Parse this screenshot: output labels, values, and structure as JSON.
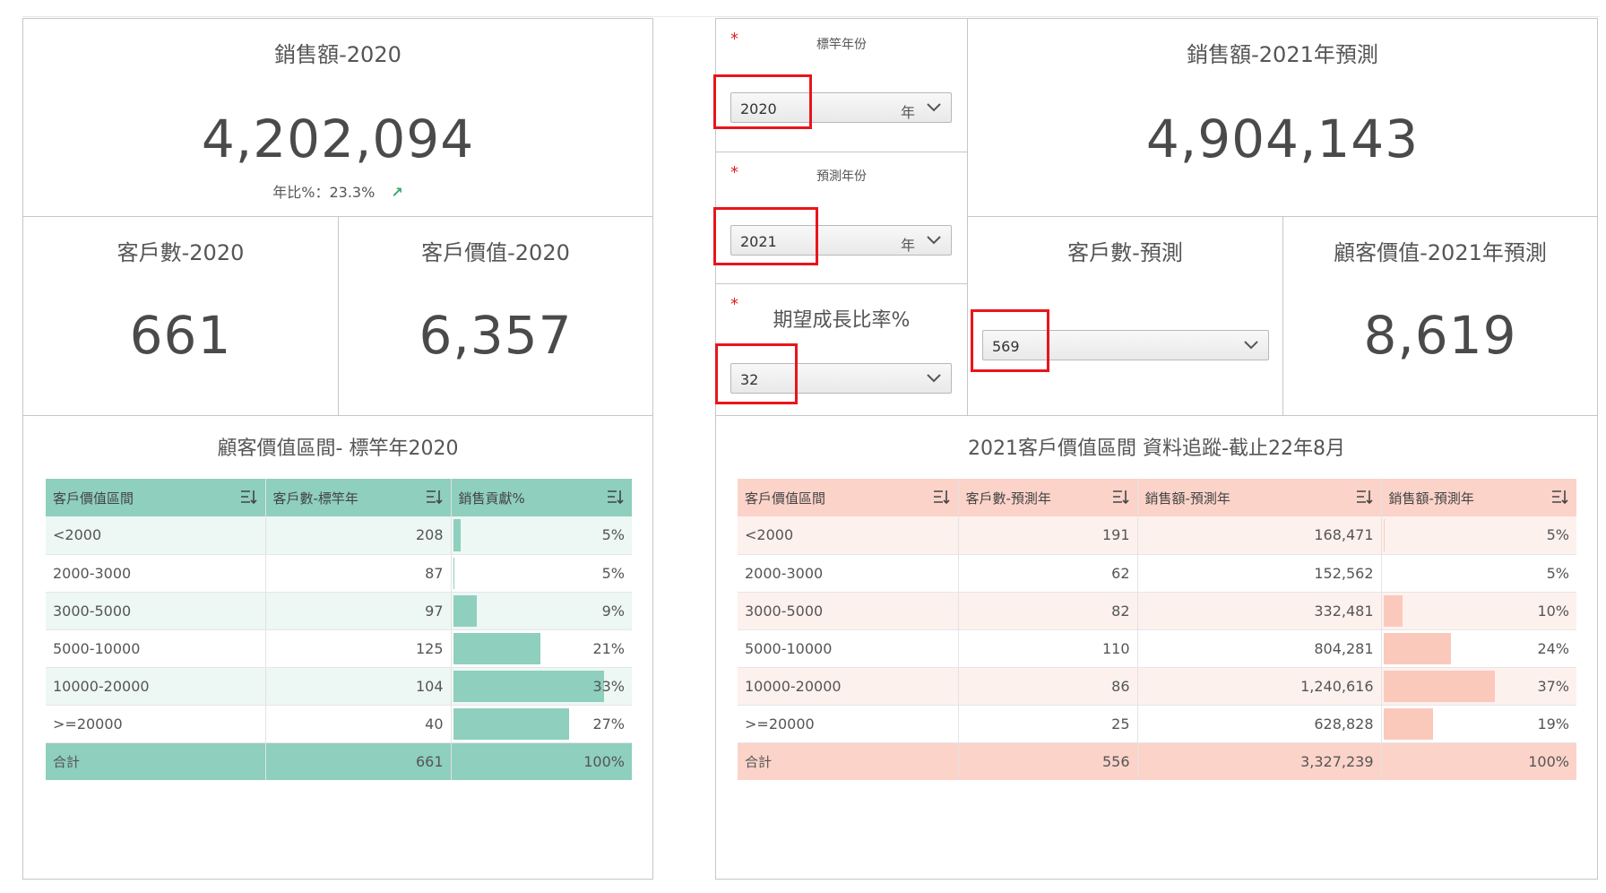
{
  "kpis": {
    "sales_2020": {
      "title": "銷售額-2020",
      "value": "4,202,094",
      "yoy": "年比%：23.3%"
    },
    "customers_2020": {
      "title": "客戶數-2020",
      "value": "661"
    },
    "value_2020": {
      "title": "客戶價值-2020",
      "value": "6,357"
    },
    "sales_2021": {
      "title": "銷售額-2021年預測",
      "value": "4,904,143"
    },
    "customers_forecast": {
      "title": "客戶數-預測"
    },
    "value_2021": {
      "title": "顧客價值-2021年預測",
      "value": "8,619"
    }
  },
  "params": {
    "required_mark": "*",
    "base_year": {
      "label": "標竿年份",
      "value": "2020",
      "unit": "年"
    },
    "forecast_year": {
      "label": "預測年份",
      "value": "2021",
      "unit": "年"
    },
    "growth_rate": {
      "label": "期望成長比率%",
      "value": "32"
    },
    "customer_count": {
      "value": "569"
    }
  },
  "table_green": {
    "title": "顧客價值區間- 標竿年2020",
    "headers": [
      "客戶價值區間",
      "客戶數-標竿年",
      "銷售貢獻%"
    ],
    "rows": [
      {
        "range": "<2000",
        "count": "208",
        "pct": "5%",
        "pct_value": 5
      },
      {
        "range": "2000-3000",
        "count": "87",
        "pct": "5%",
        "pct_value": 1
      },
      {
        "range": "3000-5000",
        "count": "97",
        "pct": "9%",
        "pct_value": 16
      },
      {
        "range": "5000-10000",
        "count": "125",
        "pct": "21%",
        "pct_value": 58
      },
      {
        "range": "10000-20000",
        "count": "104",
        "pct": "33%",
        "pct_value": 100
      },
      {
        "range": ">=20000",
        "count": "40",
        "pct": "27%",
        "pct_value": 77
      }
    ],
    "total": {
      "label": "合計",
      "count": "661",
      "pct": "100%"
    }
  },
  "table_red": {
    "title": "2021客戶價值區間 資料追蹤-截止22年8月",
    "headers": [
      "客戶價值區間",
      "客戶數-預測年",
      "銷售額-預測年",
      "銷售額-預測年"
    ],
    "rows": [
      {
        "range": "<2000",
        "count": "191",
        "sales": "168,471",
        "pct": "5%",
        "pct_value": 1
      },
      {
        "range": "2000-3000",
        "count": "62",
        "sales": "152,562",
        "pct": "5%",
        "pct_value": 0
      },
      {
        "range": "3000-5000",
        "count": "82",
        "sales": "332,481",
        "pct": "10%",
        "pct_value": 17
      },
      {
        "range": "5000-10000",
        "count": "110",
        "sales": "804,281",
        "pct": "24%",
        "pct_value": 61
      },
      {
        "range": "10000-20000",
        "count": "86",
        "sales": "1,240,616",
        "pct": "37%",
        "pct_value": 100
      },
      {
        "range": ">=20000",
        "count": "25",
        "sales": "628,828",
        "pct": "19%",
        "pct_value": 45
      }
    ],
    "total": {
      "label": "合計",
      "count": "556",
      "sales": "3,327,239",
      "pct": "100%"
    }
  }
}
